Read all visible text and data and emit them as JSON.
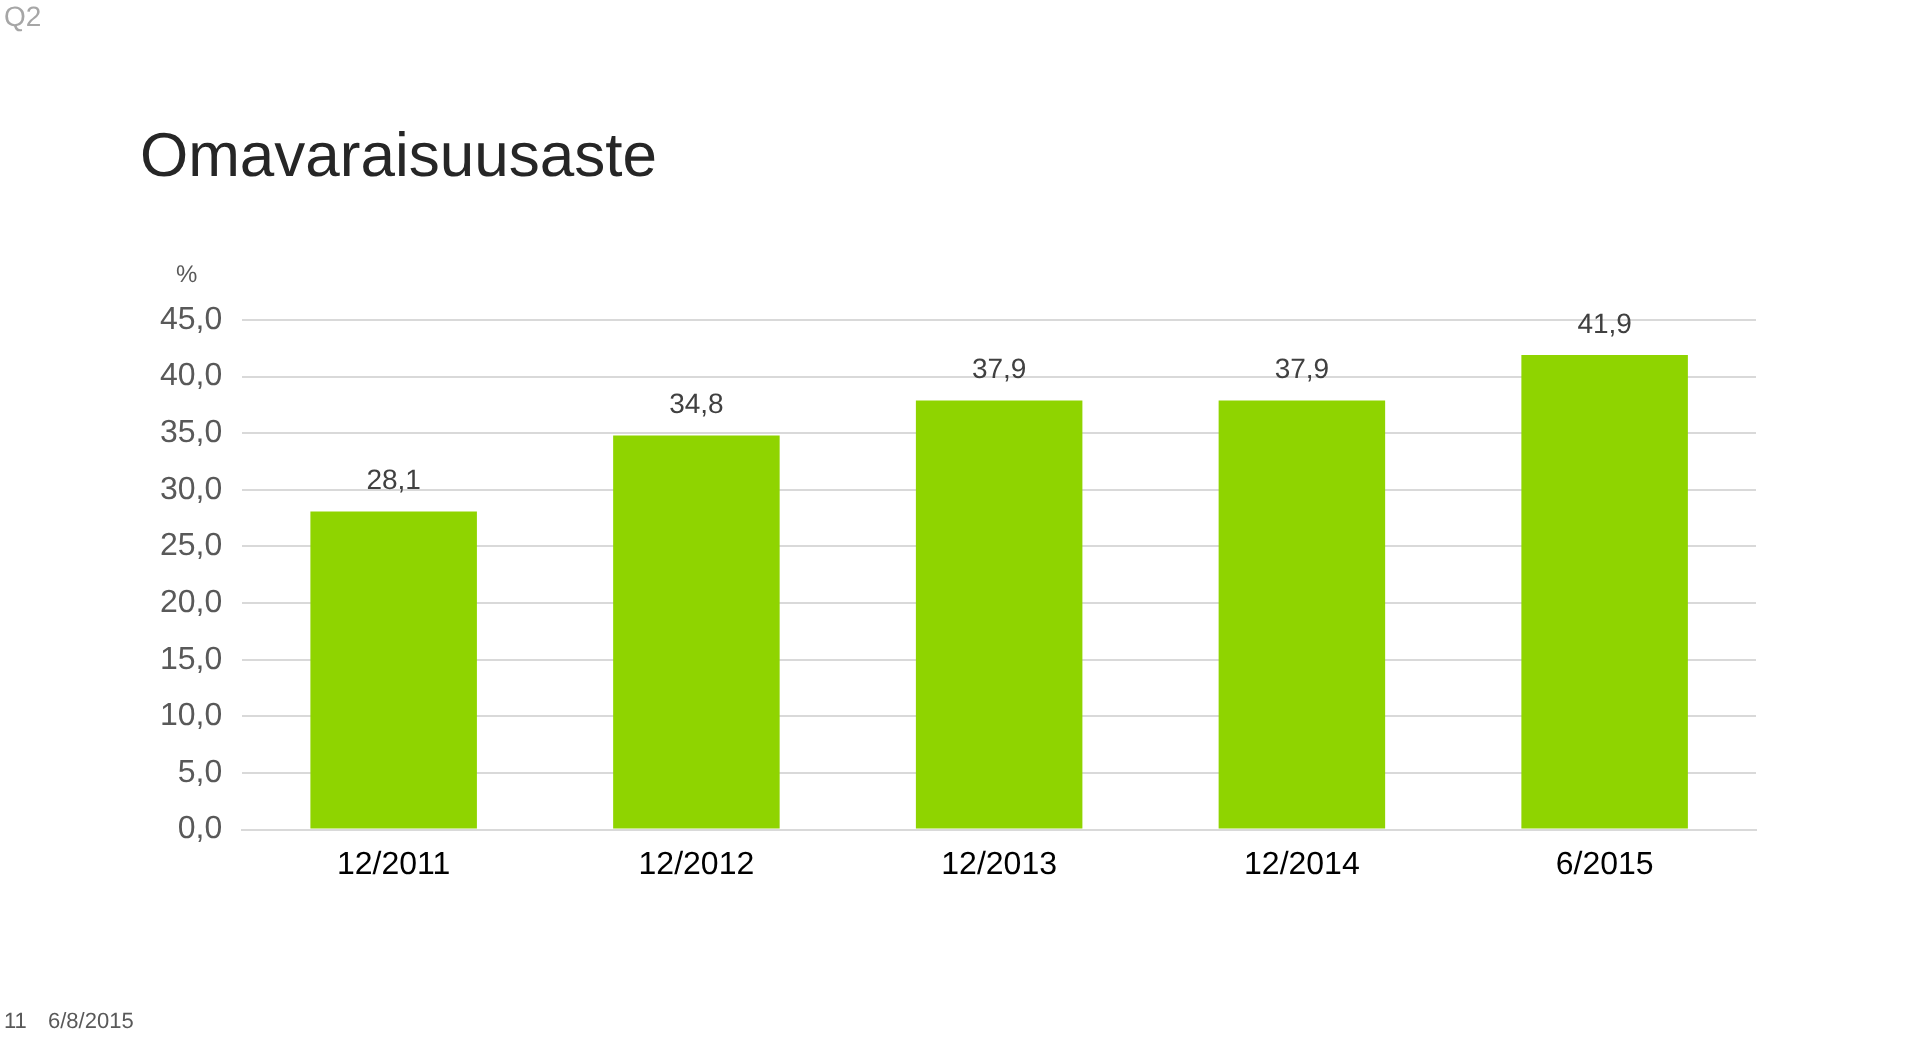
{
  "chart_data": {
    "type": "bar",
    "title": "Omavaraisuusaste",
    "ylabel": "%",
    "categories": [
      "12/2011",
      "12/2012",
      "12/2013",
      "12/2014",
      "6/2015"
    ],
    "values": [
      28.1,
      34.8,
      37.9,
      37.9,
      41.9
    ],
    "value_labels": [
      "28,1",
      "34,8",
      "37,9",
      "37,9",
      "41,9"
    ],
    "color": "#8fd400",
    "ylim": [
      0,
      45
    ],
    "yticks": [
      {
        "value": 0,
        "label": "0,0"
      },
      {
        "value": 5,
        "label": "5,0"
      },
      {
        "value": 10,
        "label": "10,0"
      },
      {
        "value": 15,
        "label": "15,0"
      },
      {
        "value": 20,
        "label": "20,0"
      },
      {
        "value": 25,
        "label": "25,0"
      },
      {
        "value": 30,
        "label": "30,0"
      },
      {
        "value": 35,
        "label": "35,0"
      },
      {
        "value": 40,
        "label": "40,0"
      },
      {
        "value": 45,
        "label": "45,0"
      }
    ],
    "grid": "y",
    "annotations": [
      "Q2",
      "11",
      "6/8/2015"
    ]
  }
}
